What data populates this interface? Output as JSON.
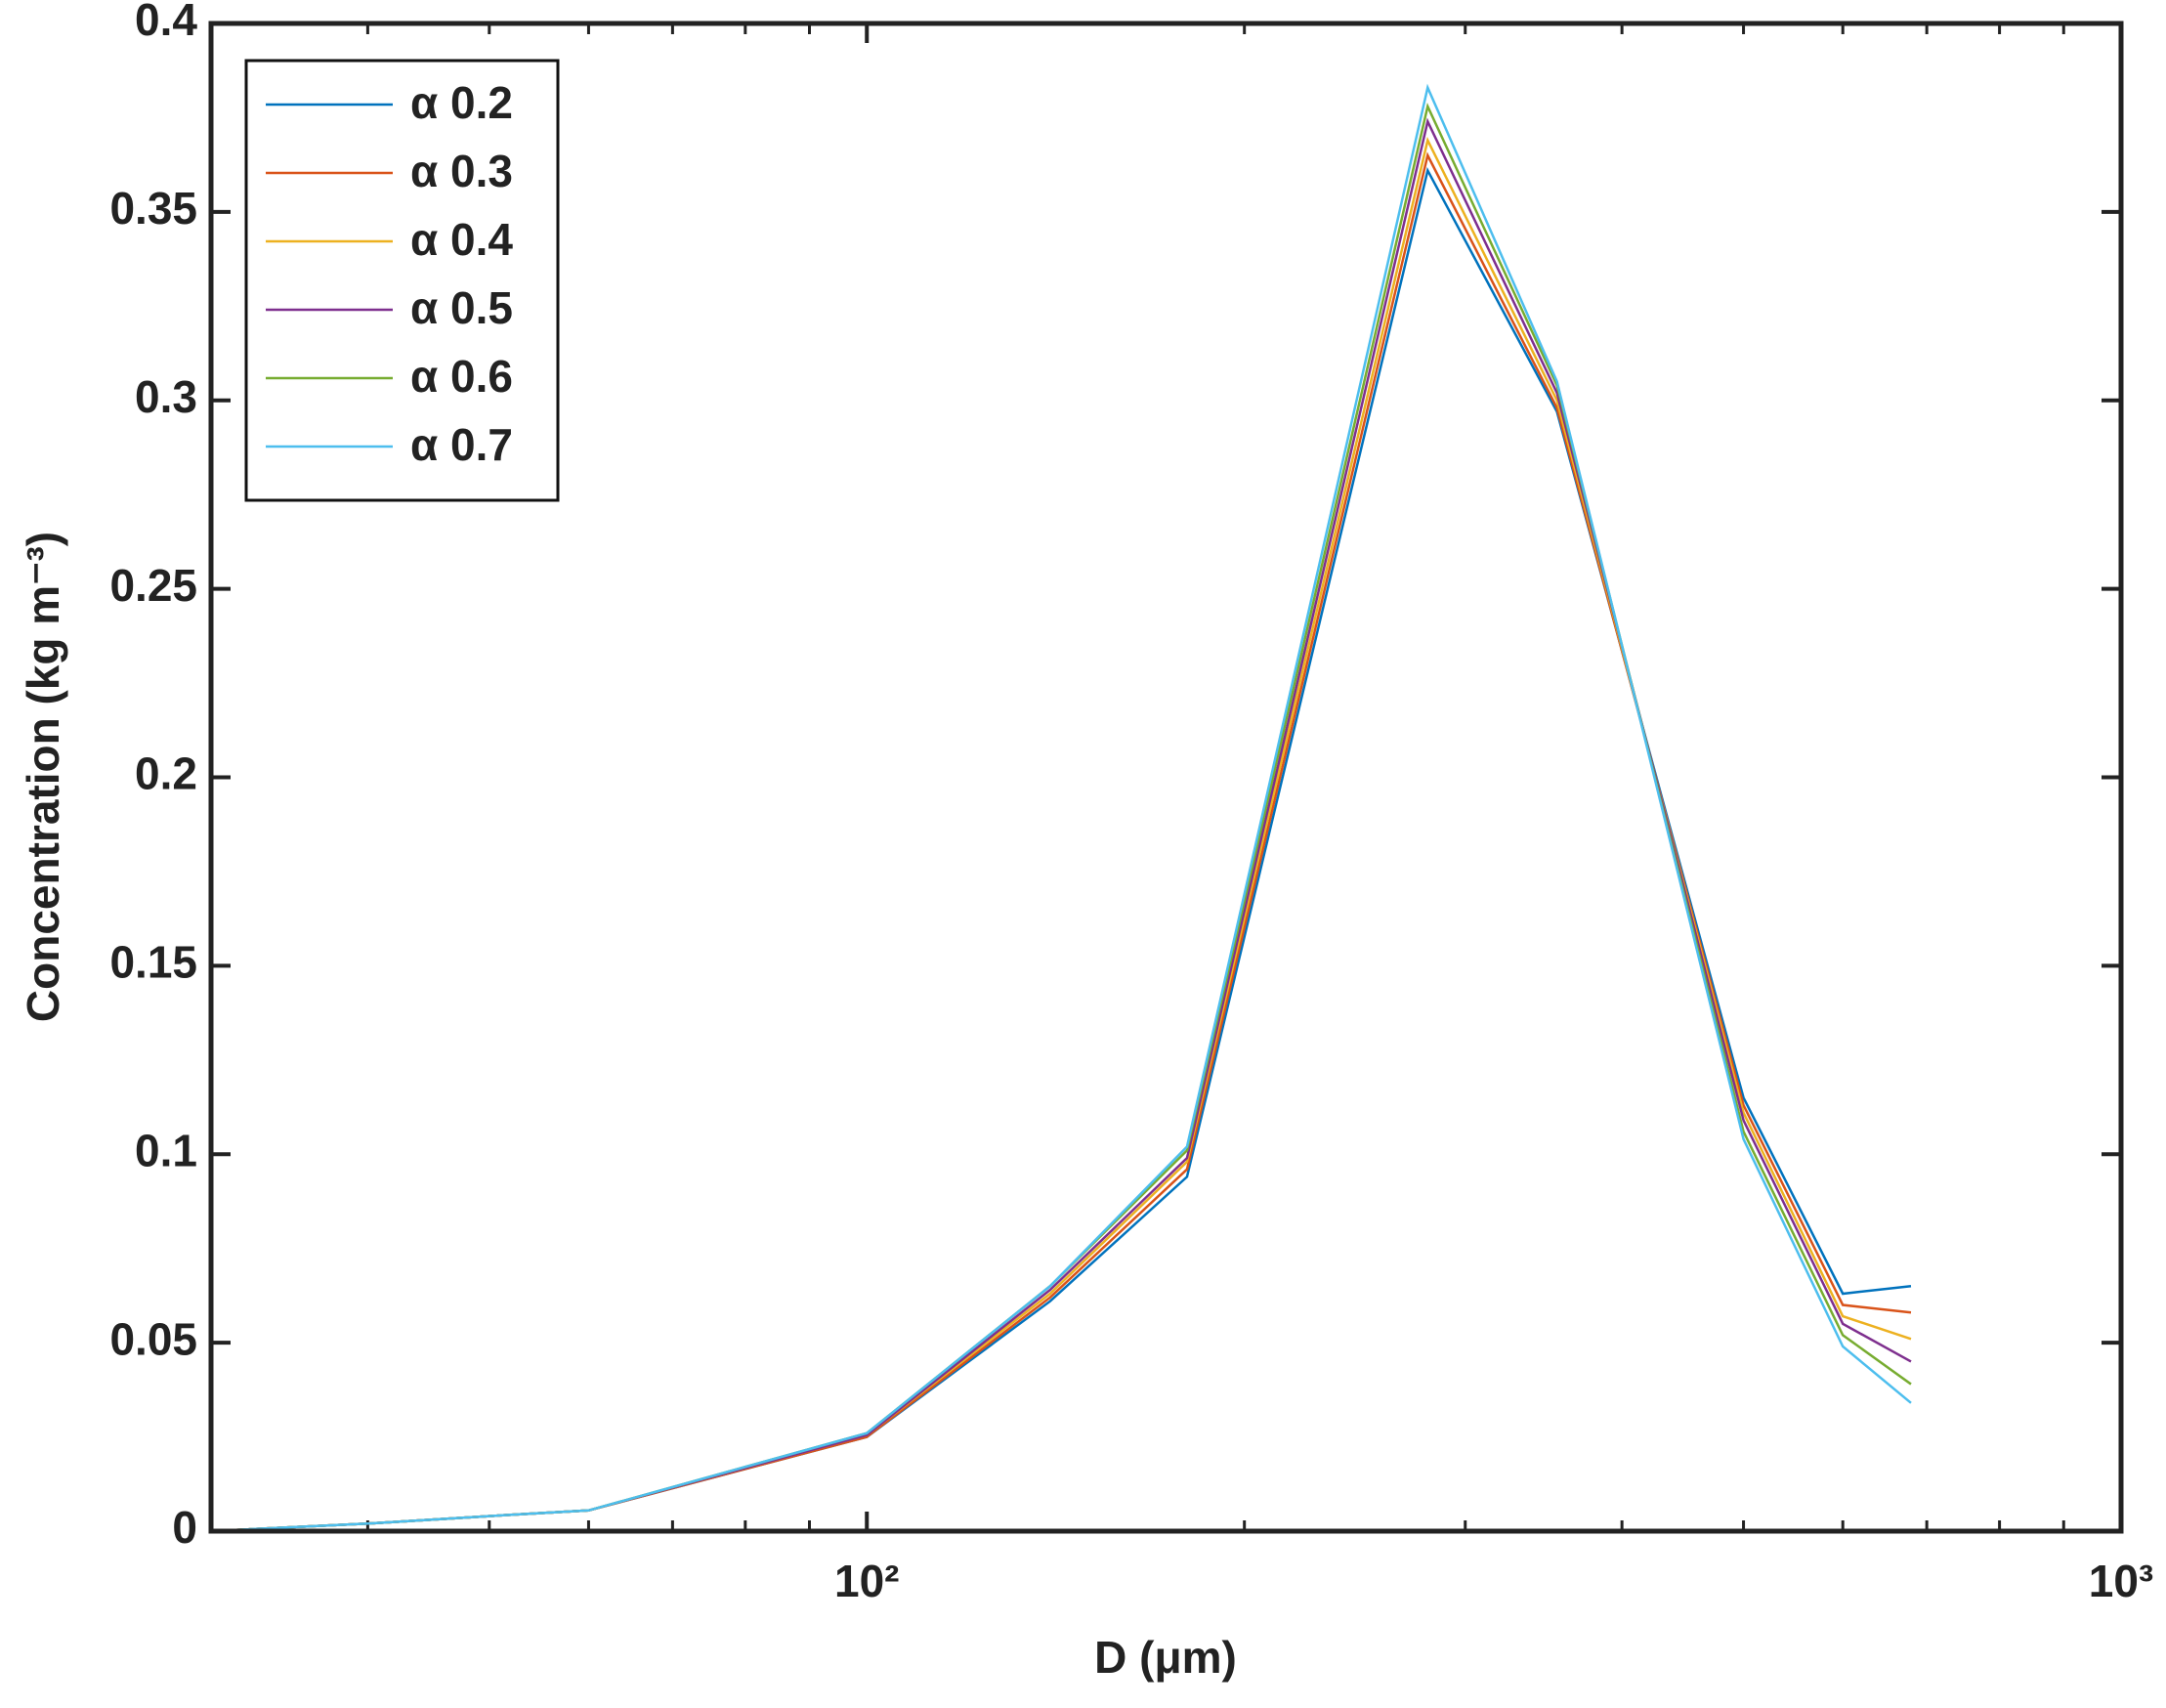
{
  "chart_data": {
    "type": "line",
    "xlabel": "D (μm)",
    "ylabel": "Concentration (kg m⁻³)",
    "x": [
      30,
      40,
      50,
      60,
      100,
      140,
      180,
      280,
      355,
      500,
      600,
      680
    ],
    "series": [
      {
        "name": "α 0.2",
        "color": "#0072bd",
        "values": [
          0,
          0.002,
          0.004,
          0.0055,
          0.025,
          0.061,
          0.094,
          0.361,
          0.297,
          0.115,
          0.063,
          0.065
        ]
      },
      {
        "name": "α 0.3",
        "color": "#d95319",
        "values": [
          0,
          0.002,
          0.004,
          0.0055,
          0.025,
          0.062,
          0.096,
          0.365,
          0.298,
          0.113,
          0.06,
          0.058
        ]
      },
      {
        "name": "α 0.4",
        "color": "#edb120",
        "values": [
          0,
          0.002,
          0.004,
          0.0055,
          0.0255,
          0.063,
          0.098,
          0.369,
          0.3,
          0.111,
          0.057,
          0.051
        ]
      },
      {
        "name": "α 0.5",
        "color": "#7e2f8e",
        "values": [
          0,
          0.002,
          0.004,
          0.0055,
          0.0255,
          0.064,
          0.099,
          0.374,
          0.302,
          0.109,
          0.055,
          0.045
        ]
      },
      {
        "name": "α 0.6",
        "color": "#77ac30",
        "values": [
          0,
          0.002,
          0.004,
          0.0055,
          0.026,
          0.065,
          0.101,
          0.378,
          0.304,
          0.106,
          0.052,
          0.039
        ]
      },
      {
        "name": "α 0.7",
        "color": "#4dbeee",
        "values": [
          0,
          0.002,
          0.004,
          0.0055,
          0.026,
          0.065,
          0.102,
          0.383,
          0.305,
          0.104,
          0.049,
          0.034
        ]
      }
    ],
    "xscale": "log",
    "xlim": [
      30,
      1000
    ],
    "xticks": [
      {
        "value": 100,
        "label": "10²"
      },
      {
        "value": 1000,
        "label": "10³"
      }
    ],
    "xminorticks": [
      40,
      50,
      60,
      70,
      80,
      90,
      200,
      300,
      400,
      500,
      600,
      700,
      800,
      900
    ],
    "ylim": [
      0,
      0.4
    ],
    "yticks": [
      0,
      0.05,
      0.1,
      0.15,
      0.2,
      0.25,
      0.3,
      0.35,
      0.4
    ],
    "grid": false,
    "legend": "upper left"
  }
}
